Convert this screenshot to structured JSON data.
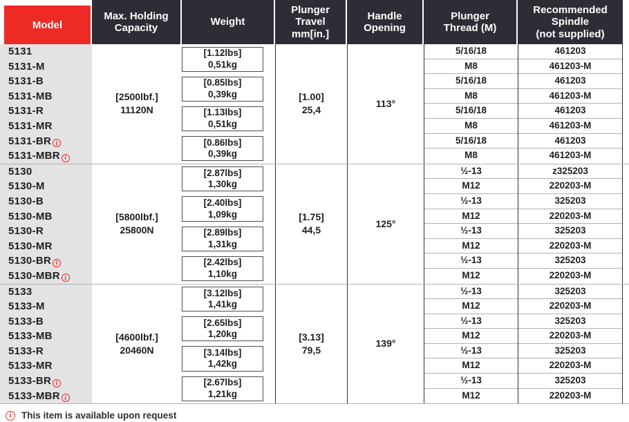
{
  "colors": {
    "accent_red": "#ee2a26",
    "header_dark": "#2d2d36",
    "model_column_bg": "#e3e3e3",
    "grid_dark_line": "#2e2e2e",
    "grid_light_line": "#b0b0b0"
  },
  "icons": {
    "info_glyph": "i"
  },
  "header": {
    "columns": [
      {
        "label": [
          "Model"
        ]
      },
      {
        "label": [
          "Max. Holding",
          "Capacity"
        ]
      },
      {
        "label": [
          "Weight"
        ]
      },
      {
        "label": [
          "Plunger",
          "Travel",
          "mm[in.]"
        ]
      },
      {
        "label": [
          "Handle",
          "Opening"
        ]
      },
      {
        "label": [
          "Plunger",
          "Thread (M)"
        ]
      },
      {
        "label": [
          "Recommended",
          "Spindle",
          "(not supplied)"
        ]
      }
    ]
  },
  "groups": [
    {
      "capacity_lbf": "[2500lbf.]",
      "capacity_n": "11120N",
      "travel_in": "[1.00]",
      "travel_mm": "25,4",
      "handle_opening": "113°",
      "weights": [
        {
          "lbs": "[1.12lbs]",
          "kg": "0,51kg"
        },
        {
          "lbs": "[0.85lbs]",
          "kg": "0,39kg"
        },
        {
          "lbs": "[1.13lbs]",
          "kg": "0,51kg"
        },
        {
          "lbs": "[0.86lbs]",
          "kg": "0,39kg"
        }
      ],
      "rows": [
        {
          "model": "5131",
          "thread": "5/16/18",
          "spindle": "461203"
        },
        {
          "model": "5131-M",
          "thread": "M8",
          "spindle": "461203-M"
        },
        {
          "model": "5131-B",
          "thread": "5/16/18",
          "spindle": "461203"
        },
        {
          "model": "5131-MB",
          "thread": "M8",
          "spindle": "461203-M"
        },
        {
          "model": "5131-R",
          "thread": "5/16/18",
          "spindle": "461203"
        },
        {
          "model": "5131-MR",
          "thread": "M8",
          "spindle": "461203-M"
        },
        {
          "model": "5131-BR",
          "note": true,
          "thread": "5/16/18",
          "spindle": "461203"
        },
        {
          "model": "5131-MBR",
          "note": true,
          "thread": "M8",
          "spindle": "461203-M"
        }
      ]
    },
    {
      "capacity_lbf": "[5800lbf.]",
      "capacity_n": "25800N",
      "travel_in": "[1.75]",
      "travel_mm": "44,5",
      "handle_opening": "125°",
      "weights": [
        {
          "lbs": "[2.87lbs]",
          "kg": "1,30kg"
        },
        {
          "lbs": "[2.40lbs]",
          "kg": "1,09kg"
        },
        {
          "lbs": "[2.89lbs]",
          "kg": "1,31kg"
        },
        {
          "lbs": "[2.42lbs]",
          "kg": "1,10kg"
        }
      ],
      "rows": [
        {
          "model": "5130",
          "thread": "½-13",
          "spindle": "z325203"
        },
        {
          "model": "5130-M",
          "thread": "M12",
          "spindle": "220203-M"
        },
        {
          "model": "5130-B",
          "thread": "½-13",
          "spindle": "325203"
        },
        {
          "model": "5130-MB",
          "thread": "M12",
          "spindle": "220203-M"
        },
        {
          "model": "5130-R",
          "thread": "½-13",
          "spindle": "325203"
        },
        {
          "model": "5130-MR",
          "thread": "M12",
          "spindle": "220203-M"
        },
        {
          "model": "5130-BR",
          "note": true,
          "thread": "½-13",
          "spindle": "325203"
        },
        {
          "model": "5130-MBR",
          "note": true,
          "thread": "M12",
          "spindle": "220203-M"
        }
      ]
    },
    {
      "capacity_lbf": "[4600lbf.]",
      "capacity_n": "20460N",
      "travel_in": "[3.13]",
      "travel_mm": "79,5",
      "handle_opening": "139°",
      "weights": [
        {
          "lbs": "[3.12lbs]",
          "kg": "1,41kg"
        },
        {
          "lbs": "[2.65lbs]",
          "kg": "1,20kg"
        },
        {
          "lbs": "[3.14lbs]",
          "kg": "1,42kg"
        },
        {
          "lbs": "[2.67lbs]",
          "kg": "1,21kg"
        }
      ],
      "rows": [
        {
          "model": "5133",
          "thread": "½-13",
          "spindle": "325203"
        },
        {
          "model": "5133-M",
          "thread": "M12",
          "spindle": "220203-M"
        },
        {
          "model": "5133-B",
          "thread": "½-13",
          "spindle": "325203"
        },
        {
          "model": "5133-MB",
          "thread": "M12",
          "spindle": "220203-M"
        },
        {
          "model": "5133-R",
          "thread": "½-13",
          "spindle": "325203"
        },
        {
          "model": "5133-MR",
          "thread": "M12",
          "spindle": "220203-M"
        },
        {
          "model": "5133-BR",
          "note": true,
          "thread": "½-13",
          "spindle": "325203"
        },
        {
          "model": "5133-MBR",
          "note": true,
          "thread": "M12",
          "spindle": "220203-M"
        }
      ]
    }
  ],
  "footnote": {
    "text": "This item is available upon request"
  }
}
